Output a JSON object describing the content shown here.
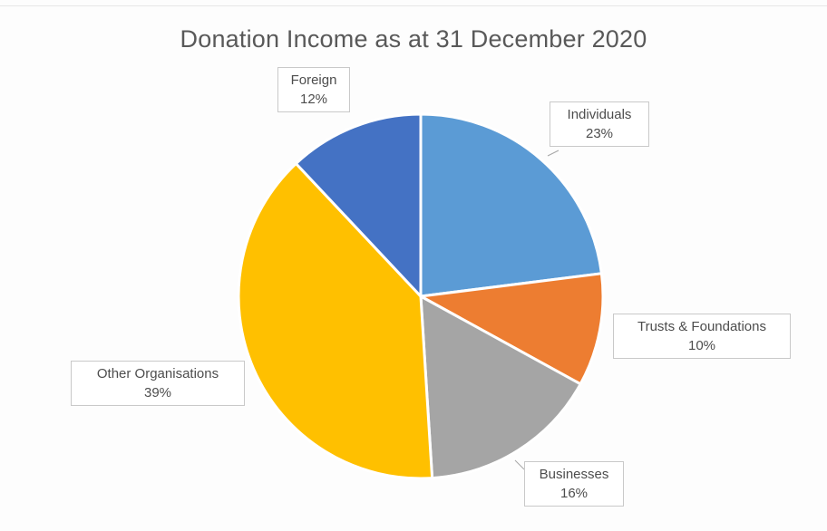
{
  "chart_data": {
    "type": "pie",
    "title": "Donation Income as at 31 December 2020",
    "categories": [
      "Individuals",
      "Trusts & Foundations",
      "Businesses",
      "Other Organisations",
      "Foreign"
    ],
    "values": [
      23,
      10,
      16,
      39,
      12
    ],
    "labels": [
      "23%",
      "10%",
      "16%",
      "39%",
      "12%"
    ],
    "colors": [
      "#5b9bd5",
      "#ed7d31",
      "#a5a5a5",
      "#ffc000",
      "#4472c4"
    ],
    "legend": "none"
  }
}
